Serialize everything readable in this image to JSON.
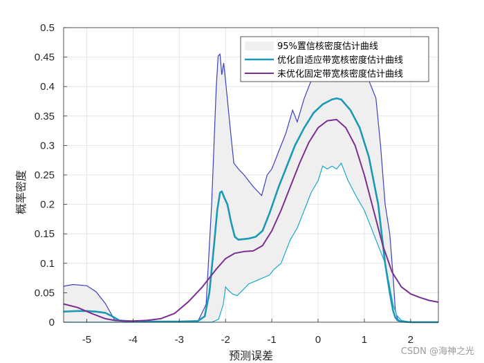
{
  "chart_data": {
    "type": "line",
    "title": "",
    "xlabel": "预测误差",
    "ylabel": "概率密度",
    "xlim": [
      -5.5,
      2.6
    ],
    "ylim": [
      0,
      0.5
    ],
    "xticks": [
      "-5",
      "-4",
      "-3",
      "-2",
      "-1",
      "0",
      "1",
      "2"
    ],
    "yticks": [
      "0",
      "0.05",
      "0.1",
      "0.15",
      "0.2",
      "0.25",
      "0.3",
      "0.35",
      "0.4",
      "0.45",
      "0.5"
    ],
    "grid": true,
    "legend_position": "top-right",
    "legend": [
      "95%置信核密度估计曲线",
      "优化自适应带宽核密度估计曲线",
      "未优化固定带宽核密度估计曲线"
    ],
    "colors": {
      "band_fill": "#efefef",
      "band_upper": "#3a3fc0",
      "band_lower": "#1aa8c8",
      "adaptive": "#1a98b4",
      "fixed": "#7a2e90"
    },
    "band_upper": {
      "x": [
        -5.5,
        -5.3,
        -5.0,
        -4.8,
        -4.6,
        -4.4,
        -4.2,
        -3.5,
        -2.6,
        -2.42,
        -2.3,
        -2.2,
        -2.16,
        -2.12,
        -2.08,
        -2.04,
        -2.0,
        -1.9,
        -1.82,
        -1.72,
        -1.6,
        -1.4,
        -1.22,
        -1.1,
        -1.0,
        -0.85,
        -0.7,
        -0.55,
        -0.45,
        -0.3,
        -0.15,
        0.0,
        0.2,
        0.4,
        0.55,
        0.75,
        0.95,
        1.1,
        1.25,
        1.35,
        1.45,
        1.55,
        1.62,
        1.67,
        1.72,
        1.8,
        2.0,
        2.6
      ],
      "y": [
        0.061,
        0.064,
        0.062,
        0.052,
        0.032,
        0.004,
        0.002,
        0.001,
        0.001,
        0.03,
        0.2,
        0.4,
        0.452,
        0.455,
        0.42,
        0.44,
        0.41,
        0.33,
        0.27,
        0.26,
        0.25,
        0.23,
        0.215,
        0.25,
        0.26,
        0.29,
        0.32,
        0.36,
        0.34,
        0.38,
        0.41,
        0.44,
        0.42,
        0.43,
        0.44,
        0.44,
        0.42,
        0.41,
        0.38,
        0.3,
        0.2,
        0.15,
        0.08,
        0.02,
        0.005,
        0.001,
        0.0,
        0.0
      ]
    },
    "band_lower": {
      "x": [
        -5.5,
        -4.4,
        -3.5,
        -2.3,
        -2.15,
        -2.05,
        -2.0,
        -1.95,
        -1.85,
        -1.75,
        -1.62,
        -1.5,
        -1.35,
        -1.2,
        -1.05,
        -0.95,
        -0.8,
        -0.7,
        -0.6,
        -0.45,
        -0.3,
        -0.15,
        0.0,
        0.1,
        0.2,
        0.3,
        0.4,
        0.5,
        0.65,
        0.85,
        1.0,
        1.2,
        1.35,
        1.45,
        1.5,
        1.55,
        1.62,
        1.7,
        1.8,
        2.0,
        2.6
      ],
      "y": [
        0.0,
        0.0,
        0.0,
        0.0,
        0.005,
        0.03,
        0.06,
        0.055,
        0.048,
        0.045,
        0.055,
        0.065,
        0.07,
        0.075,
        0.08,
        0.09,
        0.1,
        0.12,
        0.14,
        0.16,
        0.19,
        0.22,
        0.24,
        0.265,
        0.26,
        0.265,
        0.26,
        0.27,
        0.24,
        0.21,
        0.19,
        0.15,
        0.12,
        0.1,
        0.08,
        0.06,
        0.03,
        0.012,
        0.003,
        0.0,
        0.0
      ]
    },
    "series": [
      {
        "name": "优化自适应带宽核密度估计曲线",
        "x": [
          -5.5,
          -5.2,
          -5.0,
          -4.8,
          -4.6,
          -4.45,
          -4.3,
          -4.0,
          -3.5,
          -3.0,
          -2.6,
          -2.45,
          -2.35,
          -2.25,
          -2.18,
          -2.12,
          -2.08,
          -2.02,
          -1.96,
          -1.88,
          -1.8,
          -1.72,
          -1.62,
          -1.5,
          -1.35,
          -1.2,
          -1.05,
          -0.85,
          -0.7,
          -0.5,
          -0.3,
          -0.1,
          0.1,
          0.3,
          0.4,
          0.5,
          0.7,
          0.9,
          1.1,
          1.3,
          1.45,
          1.55,
          1.62,
          1.67,
          1.72,
          1.8,
          2.0,
          2.6
        ],
        "y": [
          0.018,
          0.019,
          0.019,
          0.018,
          0.016,
          0.01,
          0.003,
          0.001,
          0.001,
          0.001,
          0.002,
          0.01,
          0.05,
          0.13,
          0.19,
          0.22,
          0.222,
          0.21,
          0.2,
          0.17,
          0.145,
          0.14,
          0.141,
          0.142,
          0.145,
          0.155,
          0.185,
          0.23,
          0.26,
          0.3,
          0.33,
          0.355,
          0.37,
          0.378,
          0.38,
          0.378,
          0.36,
          0.33,
          0.28,
          0.2,
          0.1,
          0.05,
          0.02,
          0.008,
          0.003,
          0.001,
          0.0,
          0.0
        ]
      },
      {
        "name": "未优化固定带宽核密度估计曲线",
        "x": [
          -5.5,
          -5.2,
          -4.9,
          -4.6,
          -4.4,
          -4.2,
          -4.0,
          -3.7,
          -3.4,
          -3.1,
          -2.8,
          -2.5,
          -2.2,
          -2.0,
          -1.8,
          -1.6,
          -1.4,
          -1.2,
          -1.0,
          -0.8,
          -0.6,
          -0.4,
          -0.2,
          0.0,
          0.2,
          0.4,
          0.6,
          0.8,
          1.0,
          1.2,
          1.4,
          1.6,
          1.8,
          2.0,
          2.2,
          2.4,
          2.6
        ],
        "y": [
          0.031,
          0.025,
          0.015,
          0.006,
          0.003,
          0.002,
          0.002,
          0.003,
          0.006,
          0.015,
          0.035,
          0.06,
          0.09,
          0.108,
          0.117,
          0.12,
          0.121,
          0.13,
          0.155,
          0.19,
          0.23,
          0.27,
          0.305,
          0.33,
          0.342,
          0.344,
          0.33,
          0.3,
          0.25,
          0.19,
          0.13,
          0.085,
          0.06,
          0.048,
          0.042,
          0.037,
          0.034
        ]
      }
    ],
    "watermark": "CSDN @海神之光"
  }
}
